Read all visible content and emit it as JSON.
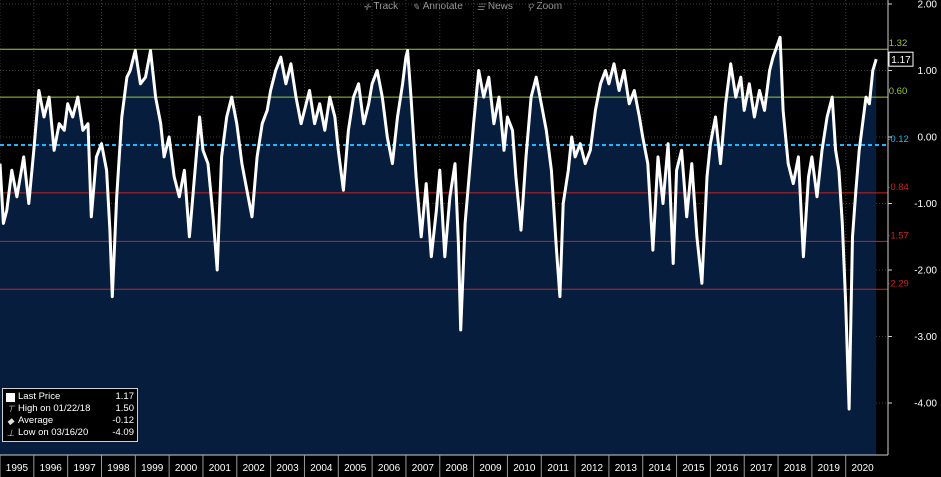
{
  "toolbar": {
    "items": [
      {
        "icon": "crosshair-icon",
        "glyph": "✛",
        "label": "Track"
      },
      {
        "icon": "annotate-icon",
        "glyph": "✎",
        "label": "Annotate"
      },
      {
        "icon": "news-icon",
        "glyph": "☰",
        "label": "News"
      },
      {
        "icon": "zoom-icon",
        "glyph": "⚲",
        "label": "Zoom"
      }
    ]
  },
  "legend": {
    "last_price_label": "Last Price",
    "last_price_value": "1.17",
    "high_label": "High on 01/22/18",
    "high_value": "1.50",
    "average_label": "Average",
    "average_value": "-0.12",
    "low_label": "Low on 03/16/20",
    "low_value": "-4.09"
  },
  "chart_data": {
    "type": "area",
    "title": "",
    "xlabel": "",
    "ylabel": "",
    "x_start": 1995.0,
    "x_end": 2020.9,
    "ylim": [
      -4.7,
      2.1
    ],
    "y_ticks": [
      "2.00",
      "1.00",
      "0.00",
      "-1.00",
      "-2.00",
      "-3.00",
      "-4.00"
    ],
    "y_tick_values": [
      2,
      1,
      0,
      -1,
      -2,
      -3,
      -4
    ],
    "x_tick_labels": [
      "1995",
      "1996",
      "1997",
      "1998",
      "1999",
      "2000",
      "2001",
      "2002",
      "2003",
      "2004",
      "2005",
      "2006",
      "2007",
      "2008",
      "2009",
      "2010",
      "2011",
      "2012",
      "2013",
      "2014",
      "2015",
      "2016",
      "2017",
      "2018",
      "2019",
      "2020"
    ],
    "colors": {
      "background": "#000000",
      "area": "#061d3e",
      "line": "#ffffff",
      "plus_band": "#9acd32",
      "minus_band": "#cc2222",
      "mean": "#1fb6ff",
      "grid": "#3a3a3a",
      "last_badge": "#ffffff"
    },
    "last_value_badge": "1.17",
    "reference_lines": [
      {
        "label": "1.32",
        "value": 1.32,
        "color": "#9acd32",
        "style": "solid"
      },
      {
        "label": "0.60",
        "value": 0.6,
        "color": "#9acd32",
        "style": "solid"
      },
      {
        "label": "-0.12",
        "value": -0.12,
        "color": "#1fb6ff",
        "style": "dashed"
      },
      {
        "label": "-0.84",
        "value": -0.84,
        "color": "#cc2222",
        "style": "solid"
      },
      {
        "label": "-1.57",
        "value": -1.57,
        "color": "#cc2222",
        "style": "solid"
      },
      {
        "label": "-2.29",
        "value": -2.29,
        "color": "#cc2222",
        "style": "solid"
      }
    ],
    "series": [
      {
        "values": [
          [
            1995.0,
            -0.4
          ],
          [
            1995.1,
            -1.3
          ],
          [
            1995.2,
            -1.1
          ],
          [
            1995.35,
            -0.5
          ],
          [
            1995.5,
            -0.9
          ],
          [
            1995.7,
            -0.3
          ],
          [
            1995.85,
            -1.0
          ],
          [
            1996.0,
            -0.2
          ],
          [
            1996.15,
            0.7
          ],
          [
            1996.3,
            0.3
          ],
          [
            1996.45,
            0.6
          ],
          [
            1996.6,
            -0.2
          ],
          [
            1996.75,
            0.2
          ],
          [
            1996.9,
            0.1
          ],
          [
            1997.0,
            0.5
          ],
          [
            1997.15,
            0.3
          ],
          [
            1997.3,
            0.6
          ],
          [
            1997.45,
            0.1
          ],
          [
            1997.6,
            0.2
          ],
          [
            1997.7,
            -1.2
          ],
          [
            1997.85,
            -0.3
          ],
          [
            1998.0,
            -0.1
          ],
          [
            1998.15,
            -0.5
          ],
          [
            1998.25,
            -1.4
          ],
          [
            1998.32,
            -2.4
          ],
          [
            1998.45,
            -0.9
          ],
          [
            1998.6,
            0.3
          ],
          [
            1998.75,
            0.9
          ],
          [
            1998.85,
            1.0
          ],
          [
            1999.0,
            1.3
          ],
          [
            1999.15,
            0.8
          ],
          [
            1999.3,
            0.9
          ],
          [
            1999.45,
            1.3
          ],
          [
            1999.6,
            0.6
          ],
          [
            1999.75,
            0.2
          ],
          [
            1999.85,
            -0.3
          ],
          [
            2000.0,
            0.0
          ],
          [
            2000.15,
            -0.6
          ],
          [
            2000.3,
            -0.9
          ],
          [
            2000.45,
            -0.5
          ],
          [
            2000.6,
            -1.5
          ],
          [
            2000.75,
            -0.6
          ],
          [
            2000.9,
            0.3
          ],
          [
            2001.0,
            -0.2
          ],
          [
            2001.15,
            -0.4
          ],
          [
            2001.3,
            -1.2
          ],
          [
            2001.42,
            -2.0
          ],
          [
            2001.55,
            -0.3
          ],
          [
            2001.7,
            0.3
          ],
          [
            2001.85,
            0.6
          ],
          [
            2002.0,
            0.2
          ],
          [
            2002.15,
            -0.4
          ],
          [
            2002.3,
            -0.8
          ],
          [
            2002.45,
            -1.2
          ],
          [
            2002.6,
            -0.3
          ],
          [
            2002.75,
            0.2
          ],
          [
            2002.9,
            0.4
          ],
          [
            2003.0,
            0.7
          ],
          [
            2003.15,
            1.0
          ],
          [
            2003.3,
            1.2
          ],
          [
            2003.45,
            0.8
          ],
          [
            2003.6,
            1.1
          ],
          [
            2003.75,
            0.6
          ],
          [
            2003.9,
            0.2
          ],
          [
            2004.0,
            0.4
          ],
          [
            2004.15,
            0.7
          ],
          [
            2004.3,
            0.2
          ],
          [
            2004.45,
            0.5
          ],
          [
            2004.6,
            0.1
          ],
          [
            2004.75,
            0.6
          ],
          [
            2004.9,
            0.3
          ],
          [
            2005.0,
            -0.2
          ],
          [
            2005.15,
            -0.8
          ],
          [
            2005.3,
            0.1
          ],
          [
            2005.45,
            0.6
          ],
          [
            2005.6,
            0.8
          ],
          [
            2005.75,
            0.2
          ],
          [
            2005.9,
            0.5
          ],
          [
            2006.0,
            0.8
          ],
          [
            2006.15,
            1.0
          ],
          [
            2006.3,
            0.6
          ],
          [
            2006.45,
            0.0
          ],
          [
            2006.6,
            -0.4
          ],
          [
            2006.75,
            0.3
          ],
          [
            2006.9,
            0.8
          ],
          [
            2007.0,
            1.2
          ],
          [
            2007.05,
            1.3
          ],
          [
            2007.15,
            0.6
          ],
          [
            2007.3,
            -0.6
          ],
          [
            2007.45,
            -1.5
          ],
          [
            2007.6,
            -0.7
          ],
          [
            2007.75,
            -1.8
          ],
          [
            2007.9,
            -1.1
          ],
          [
            2008.0,
            -0.5
          ],
          [
            2008.15,
            -1.8
          ],
          [
            2008.3,
            -0.9
          ],
          [
            2008.45,
            -0.4
          ],
          [
            2008.55,
            -1.6
          ],
          [
            2008.62,
            -2.9
          ],
          [
            2008.75,
            -1.3
          ],
          [
            2008.9,
            -0.4
          ],
          [
            2009.0,
            0.2
          ],
          [
            2009.15,
            1.0
          ],
          [
            2009.3,
            0.6
          ],
          [
            2009.45,
            0.9
          ],
          [
            2009.6,
            0.2
          ],
          [
            2009.75,
            0.6
          ],
          [
            2009.9,
            -0.2
          ],
          [
            2010.0,
            0.3
          ],
          [
            2010.15,
            0.1
          ],
          [
            2010.25,
            -0.6
          ],
          [
            2010.4,
            -1.4
          ],
          [
            2010.55,
            -0.3
          ],
          [
            2010.7,
            0.6
          ],
          [
            2010.85,
            0.9
          ],
          [
            2011.0,
            0.5
          ],
          [
            2011.15,
            0.1
          ],
          [
            2011.3,
            -0.5
          ],
          [
            2011.45,
            -1.7
          ],
          [
            2011.55,
            -2.4
          ],
          [
            2011.65,
            -1.0
          ],
          [
            2011.8,
            -0.5
          ],
          [
            2011.9,
            0.0
          ],
          [
            2012.0,
            -0.3
          ],
          [
            2012.15,
            -0.1
          ],
          [
            2012.3,
            -0.4
          ],
          [
            2012.45,
            -0.2
          ],
          [
            2012.6,
            0.4
          ],
          [
            2012.75,
            0.8
          ],
          [
            2012.9,
            1.0
          ],
          [
            2013.0,
            0.8
          ],
          [
            2013.15,
            1.1
          ],
          [
            2013.3,
            0.7
          ],
          [
            2013.45,
            1.0
          ],
          [
            2013.6,
            0.5
          ],
          [
            2013.75,
            0.7
          ],
          [
            2013.9,
            0.3
          ],
          [
            2014.0,
            0.0
          ],
          [
            2014.15,
            -0.4
          ],
          [
            2014.3,
            -1.7
          ],
          [
            2014.45,
            -0.3
          ],
          [
            2014.6,
            -1.0
          ],
          [
            2014.75,
            -0.1
          ],
          [
            2014.9,
            -1.9
          ],
          [
            2015.0,
            -0.5
          ],
          [
            2015.15,
            -0.2
          ],
          [
            2015.3,
            -1.2
          ],
          [
            2015.45,
            -0.4
          ],
          [
            2015.6,
            -1.5
          ],
          [
            2015.75,
            -2.2
          ],
          [
            2015.9,
            -0.6
          ],
          [
            2016.0,
            -0.1
          ],
          [
            2016.15,
            0.3
          ],
          [
            2016.3,
            -0.4
          ],
          [
            2016.45,
            0.5
          ],
          [
            2016.6,
            1.1
          ],
          [
            2016.75,
            0.6
          ],
          [
            2016.9,
            0.9
          ],
          [
            2017.0,
            0.4
          ],
          [
            2017.15,
            0.8
          ],
          [
            2017.3,
            0.3
          ],
          [
            2017.45,
            0.7
          ],
          [
            2017.6,
            0.4
          ],
          [
            2017.75,
            1.0
          ],
          [
            2017.85,
            1.2
          ],
          [
            2018.06,
            1.5
          ],
          [
            2018.15,
            0.4
          ],
          [
            2018.3,
            -0.4
          ],
          [
            2018.45,
            -0.7
          ],
          [
            2018.6,
            -0.3
          ],
          [
            2018.75,
            -1.8
          ],
          [
            2018.9,
            -0.6
          ],
          [
            2019.0,
            -0.3
          ],
          [
            2019.15,
            -0.9
          ],
          [
            2019.3,
            -0.2
          ],
          [
            2019.45,
            0.3
          ],
          [
            2019.6,
            0.6
          ],
          [
            2019.7,
            -0.2
          ],
          [
            2019.8,
            -0.5
          ],
          [
            2019.9,
            -1.3
          ],
          [
            2020.0,
            -2.5
          ],
          [
            2020.1,
            -4.09
          ],
          [
            2020.2,
            -1.5
          ],
          [
            2020.3,
            -0.8
          ],
          [
            2020.4,
            -0.2
          ],
          [
            2020.5,
            0.2
          ],
          [
            2020.6,
            0.6
          ],
          [
            2020.7,
            0.5
          ],
          [
            2020.8,
            1.0
          ],
          [
            2020.9,
            1.17
          ]
        ]
      }
    ]
  }
}
